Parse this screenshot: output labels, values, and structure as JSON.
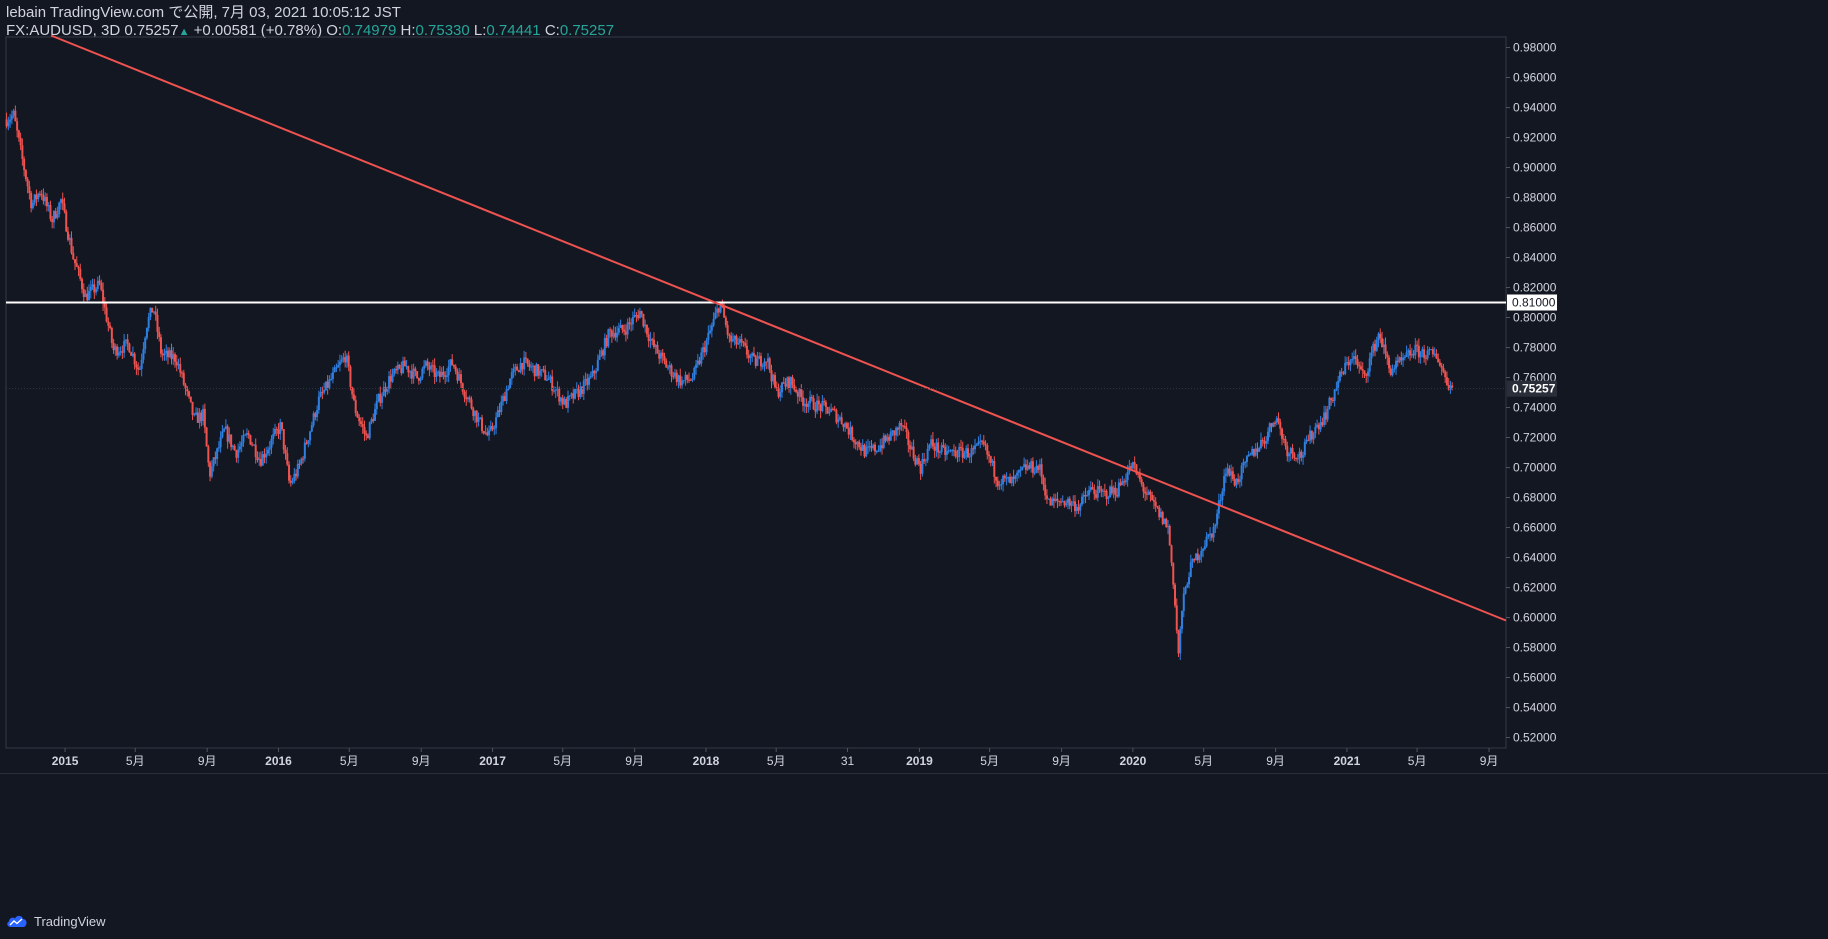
{
  "header": {
    "line1": "lebain TradingView.com で公開, 7月 03, 2021 10:05:12 JST",
    "symbol": "FX:AUDUSD, 3D 0.75257",
    "change_arrow": "▲",
    "change": "+0.00581 (+0.78%)",
    "o_label": "O:",
    "o_value": "0.74979",
    "h_label": "H:",
    "h_value": "0.75330",
    "l_label": "L:",
    "l_value": "0.74441",
    "c_label": "C:",
    "c_value": "0.75257"
  },
  "footer": {
    "brand": "TradingView",
    "logo_icon": "tradingview-cloud-icon"
  },
  "colors": {
    "background": "#131722",
    "up_candle": "#2f7fe0",
    "down_candle": "#ef5350",
    "trendline": "#ef5350",
    "horizontal_line": "#ffffff",
    "axis_text": "#d1d4dc",
    "price_label_bg": "#2a2e39"
  },
  "chart_data": {
    "type": "candlestick",
    "symbol": "FX:AUDUSD",
    "timeframe": "3D",
    "y_ticks": [
      "0.98000",
      "0.96000",
      "0.94000",
      "0.92000",
      "0.90000",
      "0.88000",
      "0.86000",
      "0.84000",
      "0.82000",
      "0.80000",
      "0.78000",
      "0.76000",
      "0.74000",
      "0.72000",
      "0.70000",
      "0.68000",
      "0.66000",
      "0.64000",
      "0.62000",
      "0.60000",
      "0.58000",
      "0.56000",
      "0.54000",
      "0.52000"
    ],
    "ylim": [
      0.513,
      0.987
    ],
    "x_range": [
      "2014-09-22",
      "2021-09-30"
    ],
    "x_ticks": [
      {
        "date": "2015-01-01",
        "label": "2015",
        "bold": true
      },
      {
        "date": "2015-05-01",
        "label": "5月"
      },
      {
        "date": "2015-09-01",
        "label": "9月"
      },
      {
        "date": "2016-01-01",
        "label": "2016",
        "bold": true
      },
      {
        "date": "2016-05-01",
        "label": "5月"
      },
      {
        "date": "2016-09-01",
        "label": "9月"
      },
      {
        "date": "2017-01-01",
        "label": "2017",
        "bold": true
      },
      {
        "date": "2017-05-01",
        "label": "5月"
      },
      {
        "date": "2017-09-01",
        "label": "9月"
      },
      {
        "date": "2018-01-01",
        "label": "2018",
        "bold": true
      },
      {
        "date": "2018-05-01",
        "label": "5月"
      },
      {
        "date": "2018-08-31",
        "label": "31"
      },
      {
        "date": "2019-01-01",
        "label": "2019",
        "bold": true
      },
      {
        "date": "2019-05-01",
        "label": "5月"
      },
      {
        "date": "2019-09-01",
        "label": "9月"
      },
      {
        "date": "2020-01-01",
        "label": "2020",
        "bold": true
      },
      {
        "date": "2020-05-01",
        "label": "5月"
      },
      {
        "date": "2020-09-01",
        "label": "9月"
      },
      {
        "date": "2021-01-01",
        "label": "2021",
        "bold": true
      },
      {
        "date": "2021-05-01",
        "label": "5月"
      },
      {
        "date": "2021-09-01",
        "label": "9月"
      }
    ],
    "horizontal_line": {
      "price": 0.81,
      "label": "0.81000"
    },
    "last_price": {
      "price": 0.75257,
      "label": "0.75257"
    },
    "trendline": {
      "start": {
        "date": "2014-12-08",
        "price": 0.988
      },
      "end": {
        "date": "2021-09-30",
        "price": 0.598
      }
    },
    "price_path": [
      [
        "2014-09-23",
        0.932
      ],
      [
        "2014-10-05",
        0.935
      ],
      [
        "2014-10-20",
        0.905
      ],
      [
        "2014-11-05",
        0.875
      ],
      [
        "2014-11-20",
        0.885
      ],
      [
        "2014-12-10",
        0.865
      ],
      [
        "2014-12-25",
        0.878
      ],
      [
        "2015-01-15",
        0.84
      ],
      [
        "2015-02-05",
        0.814
      ],
      [
        "2015-03-01",
        0.822
      ],
      [
        "2015-03-25",
        0.778
      ],
      [
        "2015-04-20",
        0.782
      ],
      [
        "2015-05-08",
        0.764
      ],
      [
        "2015-05-20",
        0.795
      ],
      [
        "2015-06-01",
        0.807
      ],
      [
        "2015-06-15",
        0.775
      ],
      [
        "2015-07-10",
        0.773
      ],
      [
        "2015-08-10",
        0.732
      ],
      [
        "2015-08-25",
        0.735
      ],
      [
        "2015-09-05",
        0.695
      ],
      [
        "2015-10-01",
        0.725
      ],
      [
        "2015-10-20",
        0.71
      ],
      [
        "2015-11-10",
        0.722
      ],
      [
        "2015-12-01",
        0.705
      ],
      [
        "2016-01-05",
        0.728
      ],
      [
        "2016-01-20",
        0.688
      ],
      [
        "2016-02-05",
        0.7
      ],
      [
        "2016-03-10",
        0.745
      ],
      [
        "2016-04-05",
        0.762
      ],
      [
        "2016-04-25",
        0.775
      ],
      [
        "2016-05-10",
        0.74
      ],
      [
        "2016-05-30",
        0.72
      ],
      [
        "2016-06-20",
        0.745
      ],
      [
        "2016-07-10",
        0.76
      ],
      [
        "2016-08-05",
        0.768
      ],
      [
        "2016-08-25",
        0.76
      ],
      [
        "2016-09-10",
        0.768
      ],
      [
        "2016-10-01",
        0.76
      ],
      [
        "2016-10-25",
        0.77
      ],
      [
        "2016-11-15",
        0.75
      ],
      [
        "2016-12-10",
        0.73
      ],
      [
        "2016-12-25",
        0.72
      ],
      [
        "2017-01-10",
        0.735
      ],
      [
        "2017-02-01",
        0.76
      ],
      [
        "2017-02-20",
        0.77
      ],
      [
        "2017-03-15",
        0.765
      ],
      [
        "2017-04-05",
        0.76
      ],
      [
        "2017-05-05",
        0.742
      ],
      [
        "2017-06-01",
        0.752
      ],
      [
        "2017-06-20",
        0.76
      ],
      [
        "2017-07-20",
        0.79
      ],
      [
        "2017-08-15",
        0.792
      ],
      [
        "2017-09-10",
        0.804
      ],
      [
        "2017-10-01",
        0.782
      ],
      [
        "2017-10-25",
        0.768
      ],
      [
        "2017-11-20",
        0.757
      ],
      [
        "2017-12-10",
        0.76
      ],
      [
        "2018-01-05",
        0.787
      ],
      [
        "2018-01-25",
        0.81
      ],
      [
        "2018-02-10",
        0.785
      ],
      [
        "2018-03-01",
        0.782
      ],
      [
        "2018-03-25",
        0.77
      ],
      [
        "2018-04-15",
        0.773
      ],
      [
        "2018-05-01",
        0.75
      ],
      [
        "2018-05-25",
        0.758
      ],
      [
        "2018-06-15",
        0.745
      ],
      [
        "2018-07-05",
        0.742
      ],
      [
        "2018-08-01",
        0.738
      ],
      [
        "2018-08-25",
        0.73
      ],
      [
        "2018-09-10",
        0.72
      ],
      [
        "2018-10-01",
        0.71
      ],
      [
        "2018-10-20",
        0.713
      ],
      [
        "2018-11-10",
        0.72
      ],
      [
        "2018-12-01",
        0.728
      ],
      [
        "2018-12-20",
        0.71
      ],
      [
        "2019-01-03",
        0.7
      ],
      [
        "2019-01-20",
        0.716
      ],
      [
        "2019-02-10",
        0.71
      ],
      [
        "2019-03-05",
        0.71
      ],
      [
        "2019-04-01",
        0.71
      ],
      [
        "2019-04-20",
        0.715
      ],
      [
        "2019-05-15",
        0.692
      ],
      [
        "2019-06-10",
        0.69
      ],
      [
        "2019-07-01",
        0.7
      ],
      [
        "2019-07-25",
        0.7
      ],
      [
        "2019-08-10",
        0.676
      ],
      [
        "2019-09-05",
        0.678
      ],
      [
        "2019-10-01",
        0.674
      ],
      [
        "2019-10-20",
        0.685
      ],
      [
        "2019-11-10",
        0.682
      ],
      [
        "2019-12-05",
        0.685
      ],
      [
        "2019-12-31",
        0.702
      ],
      [
        "2020-01-20",
        0.685
      ],
      [
        "2020-02-10",
        0.672
      ],
      [
        "2020-03-01",
        0.66
      ],
      [
        "2020-03-10",
        0.625
      ],
      [
        "2020-03-19",
        0.575
      ],
      [
        "2020-03-25",
        0.605
      ],
      [
        "2020-04-05",
        0.63
      ],
      [
        "2020-04-25",
        0.645
      ],
      [
        "2020-05-20",
        0.66
      ],
      [
        "2020-06-08",
        0.7
      ],
      [
        "2020-06-25",
        0.69
      ],
      [
        "2020-07-20",
        0.708
      ],
      [
        "2020-08-15",
        0.72
      ],
      [
        "2020-09-01",
        0.735
      ],
      [
        "2020-09-20",
        0.712
      ],
      [
        "2020-10-15",
        0.708
      ],
      [
        "2020-11-05",
        0.725
      ],
      [
        "2020-11-25",
        0.735
      ],
      [
        "2020-12-20",
        0.76
      ],
      [
        "2021-01-10",
        0.775
      ],
      [
        "2021-01-30",
        0.76
      ],
      [
        "2021-02-25",
        0.79
      ],
      [
        "2021-03-15",
        0.765
      ],
      [
        "2021-04-05",
        0.77
      ],
      [
        "2021-04-25",
        0.778
      ],
      [
        "2021-05-15",
        0.776
      ],
      [
        "2021-06-05",
        0.774
      ],
      [
        "2021-06-20",
        0.758
      ],
      [
        "2021-07-01",
        0.7526
      ]
    ]
  }
}
